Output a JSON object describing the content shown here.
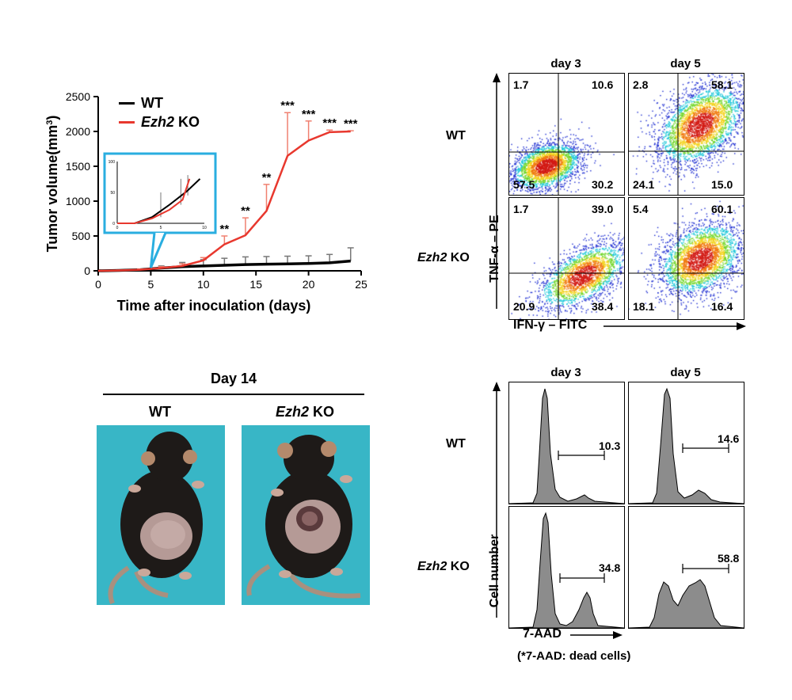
{
  "chart_data": {
    "type": "line",
    "title": "",
    "xlabel": "Time after inoculation (days)",
    "ylabel": "Tumor volume(mm3)",
    "xlim": [
      0,
      25
    ],
    "ylim": [
      0,
      2500
    ],
    "xticks": [
      "0",
      "5",
      "10",
      "15",
      "20",
      "25"
    ],
    "yticks": [
      "0",
      "500",
      "1000",
      "1500",
      "2000",
      "2500"
    ],
    "legend": [
      "WT",
      "Ezh2 KO"
    ],
    "series": [
      {
        "name": "WT",
        "color": "#000000",
        "x": [
          0,
          2,
          4,
          6,
          8,
          10,
          12,
          14,
          16,
          18,
          20,
          22,
          24
        ],
        "y": [
          0,
          5,
          15,
          40,
          60,
          70,
          80,
          90,
          95,
          100,
          105,
          115,
          140
        ],
        "err": [
          0,
          5,
          10,
          30,
          60,
          90,
          100,
          110,
          110,
          110,
          110,
          120,
          190
        ]
      },
      {
        "name": "Ezh2 KO",
        "color": "#e8382e",
        "x": [
          0,
          2,
          4,
          6,
          8,
          10,
          12,
          14,
          16,
          18,
          20,
          22,
          24
        ],
        "y": [
          0,
          5,
          15,
          40,
          70,
          150,
          380,
          510,
          860,
          1650,
          1870,
          1990,
          2000
        ],
        "err": [
          0,
          5,
          10,
          20,
          30,
          40,
          120,
          250,
          380,
          620,
          280,
          30,
          10
        ]
      }
    ],
    "significance": [
      {
        "x": 12,
        "label": "**"
      },
      {
        "x": 14,
        "label": "**"
      },
      {
        "x": 16,
        "label": "**"
      },
      {
        "x": 18,
        "label": "***"
      },
      {
        "x": 20,
        "label": "***"
      },
      {
        "x": 22,
        "label": "***"
      },
      {
        "x": 24,
        "label": "***"
      }
    ],
    "inset": {
      "xlim": [
        0,
        10
      ],
      "ylim": [
        0,
        100
      ],
      "xticks": [
        "0",
        "5",
        "10"
      ],
      "yticks": [
        "0",
        "50",
        "100"
      ],
      "series": [
        {
          "name": "WT",
          "color": "#000000",
          "x": [
            0,
            2,
            4,
            6,
            8,
            9.5
          ],
          "y": [
            0,
            0,
            10,
            30,
            52,
            72
          ]
        },
        {
          "name": "Ezh2 KO",
          "color": "#e8382e",
          "x": [
            0,
            2,
            4,
            6,
            7.5,
            8.3
          ],
          "y": [
            0,
            0,
            8,
            22,
            38,
            72
          ]
        }
      ]
    }
  },
  "legend": {
    "wt": "WT",
    "ko_gene": "Ezh2",
    "ko_suffix": " KO"
  },
  "mouse_panel": {
    "title": "Day 14",
    "wt_label": "WT",
    "ko_gene": "Ezh2",
    "ko_suffix": " KO"
  },
  "flow_top": {
    "day3": "day 3",
    "day5": "day 5",
    "row_wt": "WT",
    "row_ko_gene": "Ezh2",
    "row_ko_suffix": " KO",
    "yaxis": "TNF-α – PE",
    "xaxis": "IFN-γ – FITC",
    "quadrants": {
      "wt_d3": [
        "1.7",
        "10.6",
        "57.5",
        "30.2"
      ],
      "wt_d5": [
        "2.8",
        "58.1",
        "24.1",
        "15.0"
      ],
      "ko_d3": [
        "1.7",
        "39.0",
        "20.9",
        "38.4"
      ],
      "ko_d5": [
        "5.4",
        "60.1",
        "18.1",
        "16.4"
      ]
    }
  },
  "flow_bottom": {
    "day3": "day 3",
    "day5": "day 5",
    "row_wt": "WT",
    "row_ko_gene": "Ezh2",
    "row_ko_suffix": " KO",
    "yaxis": "Cell number",
    "xaxis": "7-AAD",
    "footnote": "(*7-AAD: dead cells)",
    "gates": {
      "wt_d3": "10.3",
      "wt_d5": "14.6",
      "ko_d3": "34.8",
      "ko_d5": "58.8"
    }
  },
  "colors": {
    "accent_red": "#e8382e",
    "inset_border": "#29aee0",
    "photo_bg": "#38b6c6",
    "histogram_fill": "#8c8c8c"
  }
}
